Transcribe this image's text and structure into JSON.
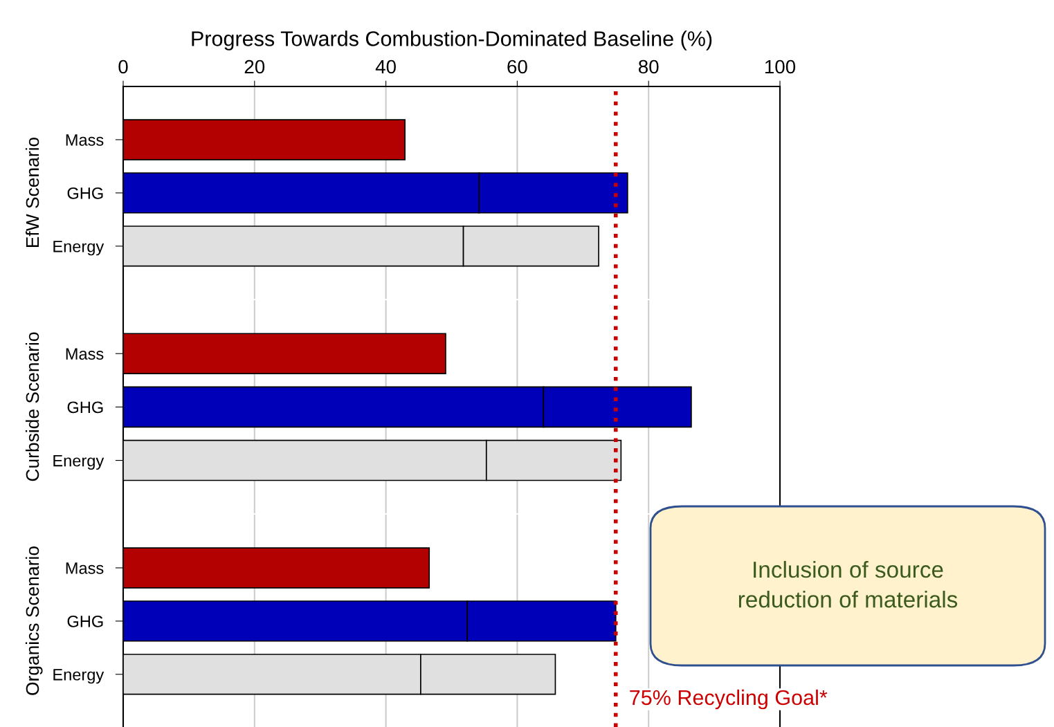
{
  "chart_data": [
    {
      "type": "bar",
      "orientation": "horizontal",
      "stacked": true,
      "xlabel": "Progress Towards Combustion-Dominated Baseline (%)",
      "ylabel": "EfW Scenario",
      "categories": [
        "Mass",
        "GHG",
        "Energy"
      ],
      "series": [
        {
          "colors": [
            "#b30000",
            "#0000b8",
            "#e0e0e0"
          ],
          "values": [
            42.9,
            54.2,
            51.8
          ]
        },
        {
          "colors": [
            "#b30000",
            "#0000b8",
            "#e0e0e0"
          ],
          "values": [
            null,
            22.6,
            20.6
          ]
        }
      ],
      "xlim": [
        0,
        100
      ],
      "xticks": [
        0,
        20,
        40,
        60,
        80,
        100
      ],
      "grid": "x",
      "ref_lines": [
        {
          "axis": "x",
          "value": 75,
          "label": null,
          "color": "#cc0000",
          "line_style": "dotted"
        }
      ]
    },
    {
      "type": "bar",
      "orientation": "horizontal",
      "stacked": true,
      "ylabel": "Curbside Scenario",
      "categories": [
        "Mass",
        "GHG",
        "Energy"
      ],
      "series": [
        {
          "colors": [
            "#b30000",
            "#0000b8",
            "#e0e0e0"
          ],
          "values": [
            49.1,
            64.0,
            55.3
          ]
        },
        {
          "colors": [
            "#b30000",
            "#0000b8",
            "#e0e0e0"
          ],
          "values": [
            null,
            22.5,
            20.5
          ]
        }
      ],
      "xlim": [
        0,
        100
      ],
      "xticks": [
        0,
        20,
        40,
        60,
        80,
        100
      ],
      "grid": "x",
      "tick_labels": "y",
      "ref_lines": [
        {
          "axis": "x",
          "value": 75,
          "label": null,
          "color": "#cc0000",
          "line_style": "dotted"
        }
      ]
    },
    {
      "type": "bar",
      "orientation": "horizontal",
      "stacked": true,
      "ylabel": "Organics Scenario",
      "categories": [
        "Mass",
        "GHG",
        "Energy"
      ],
      "series": [
        {
          "colors": [
            "#b30000",
            "#0000b8",
            "#e0e0e0"
          ],
          "values": [
            46.6,
            52.4,
            45.3
          ]
        },
        {
          "colors": [
            "#b30000",
            "#0000b8",
            "#e0e0e0"
          ],
          "values": [
            null,
            22.6,
            20.5
          ]
        }
      ],
      "xlim": [
        0,
        100
      ],
      "xticks": [
        0,
        20,
        40,
        60,
        80,
        100
      ],
      "grid": "x",
      "tick_labels": "y",
      "ref_lines": [
        {
          "axis": "x",
          "value": 75,
          "label": "75% Recycling Goal*",
          "color": "#cc0000",
          "line_style": "dotted"
        }
      ],
      "annotations": [
        "Inclusion of source reduction of materials"
      ]
    }
  ]
}
